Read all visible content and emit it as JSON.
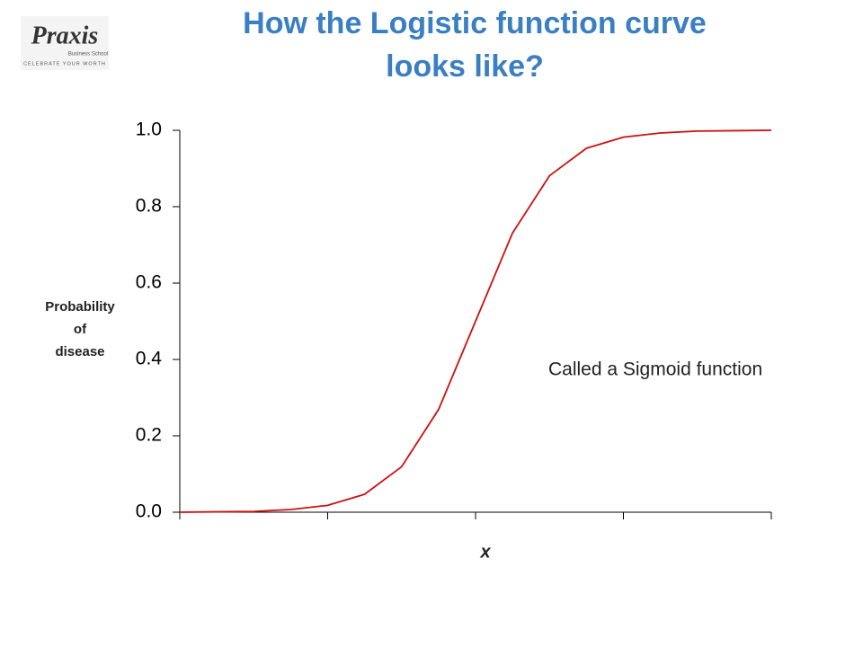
{
  "logo": {
    "name": "Praxis",
    "subtitle": "Business School",
    "tagline": "CELEBRATE YOUR WORTH"
  },
  "chart_data": {
    "type": "line",
    "title": [
      "How the Logistic function curve",
      "looks like?"
    ],
    "y_label": [
      "Probability",
      "of",
      "disease"
    ],
    "x_label": "x",
    "annotation": "Called a Sigmoid function",
    "x": [
      -8,
      -7,
      -6,
      -5,
      -4,
      -3,
      -2,
      -1,
      0,
      1,
      2,
      3,
      4,
      5,
      6,
      7,
      8
    ],
    "series": [
      {
        "name": "Logistic",
        "color": "#cc1111",
        "values": [
          0,
          0.001,
          0.002,
          0.007,
          0.018,
          0.047,
          0.119,
          0.269,
          0.5,
          0.731,
          0.881,
          0.953,
          0.982,
          0.993,
          0.998,
          0.999,
          1.0
        ]
      }
    ],
    "xlim": [
      -8,
      8
    ],
    "xticks": [
      -8,
      -4,
      0,
      4,
      8
    ],
    "ylim": [
      0,
      1
    ],
    "yticks": [
      {
        "value": 0,
        "label": "0.0"
      },
      0.2,
      0.4,
      0.6,
      0.8,
      {
        "value": 1,
        "label": "1.0"
      }
    ]
  }
}
